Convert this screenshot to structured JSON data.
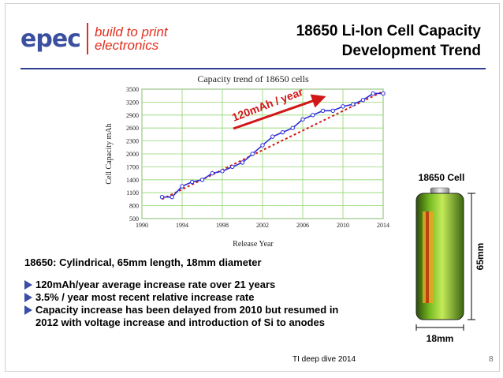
{
  "logo": {
    "brand": "epec",
    "tagline_1": "build to print",
    "tagline_2": "electronics"
  },
  "slide": {
    "title_line_1": "18650 Li-Ion Cell Capacity",
    "title_line_2": "Development Trend"
  },
  "chart_data": {
    "type": "line",
    "title": "Capacity trend of 18650 cells",
    "xlabel": "Release Year",
    "ylabel": "Cell Capacity mAh",
    "xlim": [
      1990,
      2014
    ],
    "ylim": [
      500,
      3500
    ],
    "x_ticks": [
      1990,
      1994,
      1998,
      2002,
      2006,
      2010,
      2014
    ],
    "y_ticks": [
      500,
      800,
      1100,
      1400,
      1700,
      2000,
      2300,
      2600,
      2900,
      3200,
      3500
    ],
    "grid": true,
    "series": [
      {
        "name": "Capacity",
        "color": "#2b2bd6",
        "marker": "circle",
        "x": [
          1992,
          1993,
          1994,
          1995,
          1996,
          1997,
          1998,
          1999,
          2000,
          2001,
          2002,
          2003,
          2004,
          2005,
          2006,
          2007,
          2008,
          2009,
          2010,
          2011,
          2012,
          2013,
          2014
        ],
        "y": [
          1000,
          1000,
          1250,
          1350,
          1400,
          1550,
          1600,
          1700,
          1800,
          2000,
          2200,
          2400,
          2500,
          2600,
          2800,
          2900,
          3000,
          3000,
          3100,
          3150,
          3250,
          3400,
          3400
        ]
      },
      {
        "name": "Trend",
        "color": "#d01818",
        "style": "dotted",
        "x": [
          1992,
          2014
        ],
        "y": [
          950,
          3450
        ]
      }
    ],
    "annotation": {
      "text": "120mAh / year",
      "color": "#d01818"
    }
  },
  "description": {
    "spec": "18650: Cylindrical, 65mm length, 18mm diameter",
    "bullets": [
      "120mAh/year average increase rate over 21 years",
      "3.5% / year most recent relative increase rate",
      "Capacity increase has been delayed from 2010 but resumed in 2012 with voltage increase and introduction of Si to anodes"
    ]
  },
  "cell": {
    "label": "18650 Cell",
    "length": "65mm",
    "diameter": "18mm"
  },
  "footer": {
    "text": "TI deep dive 2014",
    "page": "8"
  }
}
